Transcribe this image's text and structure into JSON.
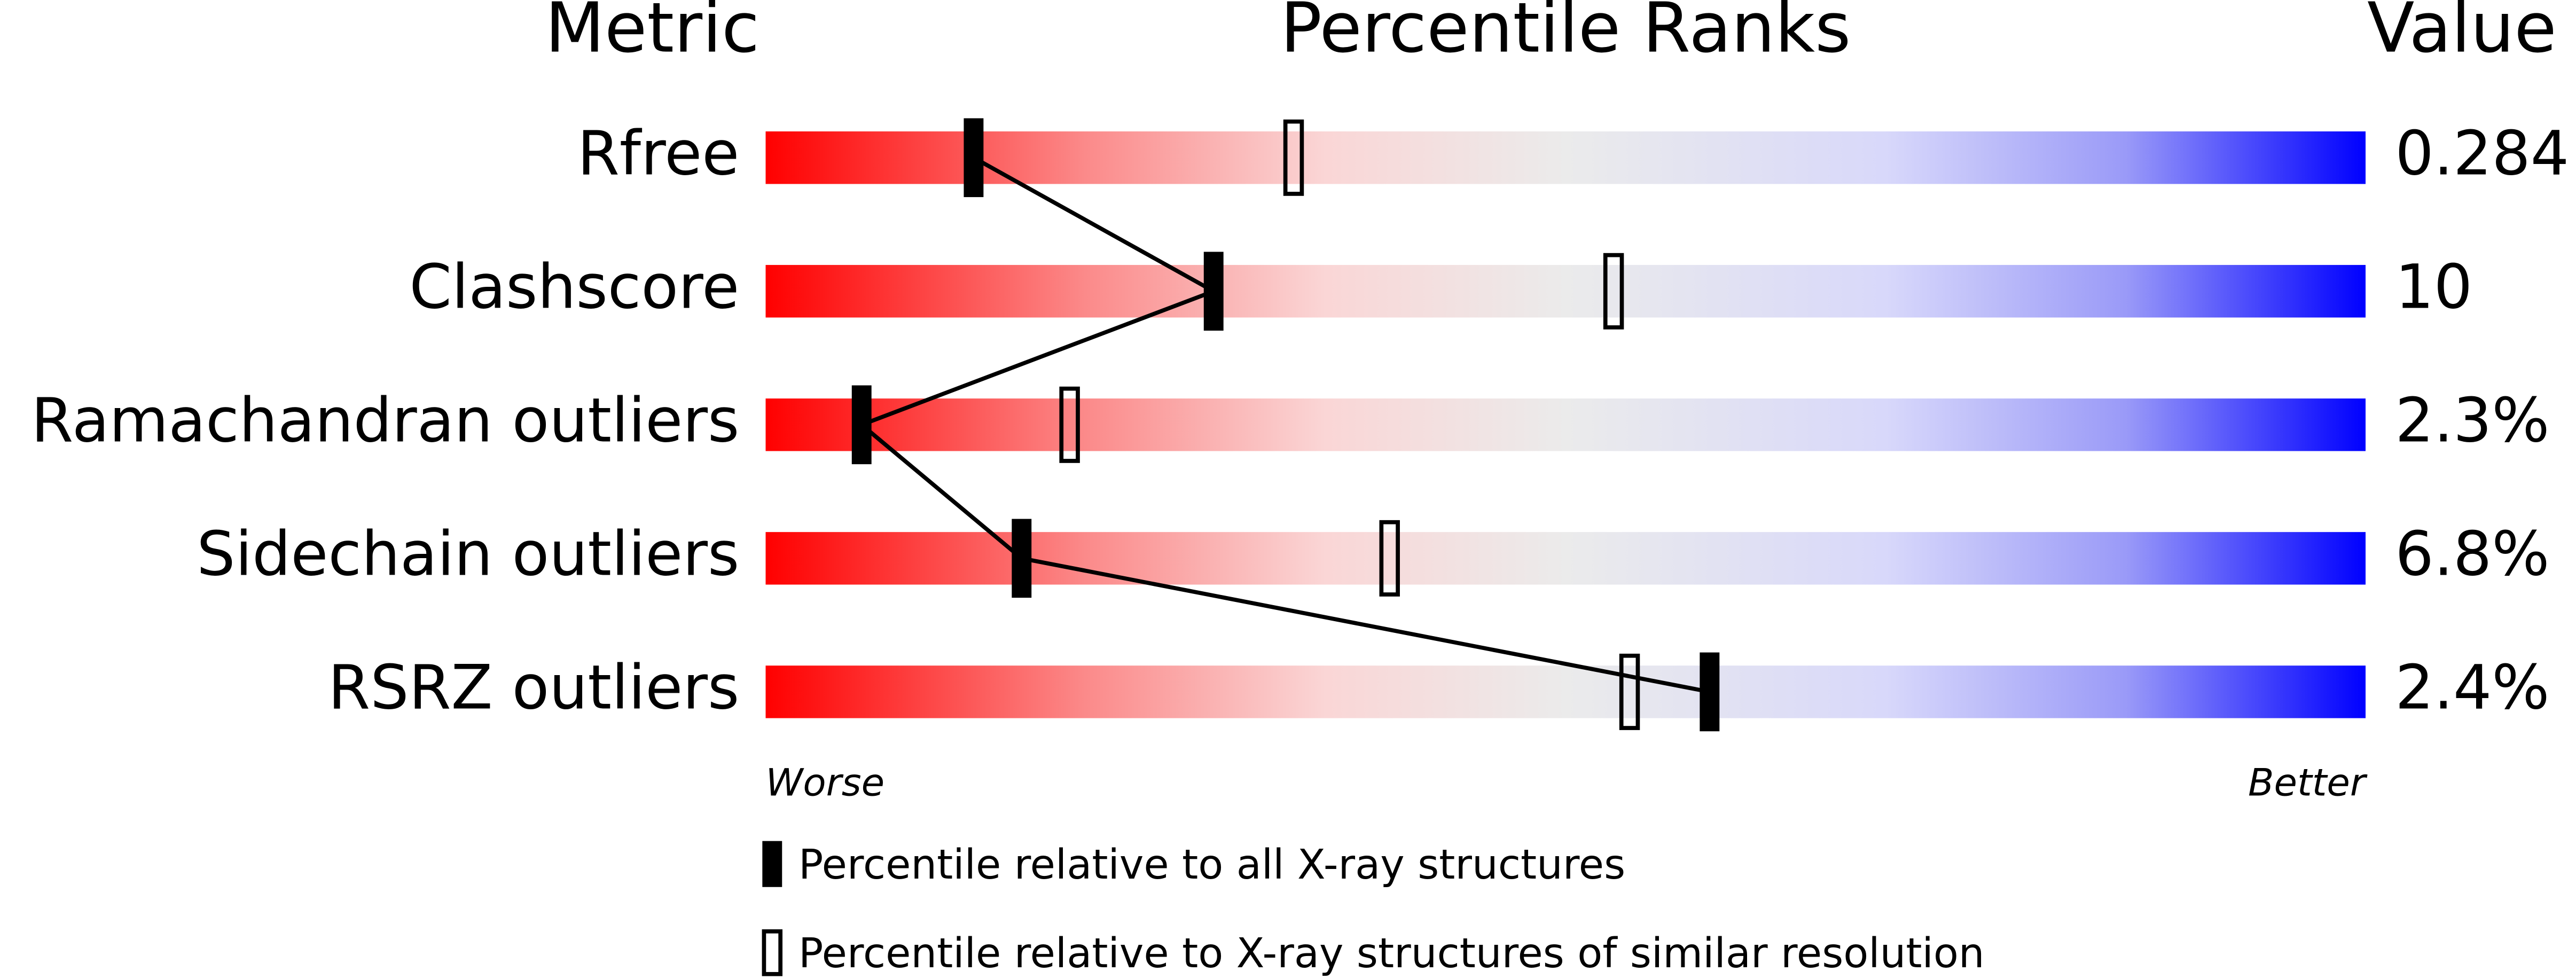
{
  "chart_data": {
    "type": "percentile",
    "headers": {
      "metric": "Metric",
      "ranks": "Percentile Ranks",
      "value": "Value"
    },
    "categories": [
      "Rfree",
      "Clashscore",
      "Ramachandran outliers",
      "Sidechain outliers",
      "RSRZ outliers"
    ],
    "metric_values": [
      "0.284",
      "10",
      "2.3%",
      "6.8%",
      "2.4%"
    ],
    "series": [
      {
        "name": "Percentile relative to all X-ray structures",
        "color": "#000000",
        "style": "filled",
        "values": [
          13,
          28,
          6,
          16,
          59
        ]
      },
      {
        "name": "Percentile relative to X-ray structures of similar resolution",
        "color": "#000000",
        "style": "open",
        "values": [
          33,
          53,
          19,
          39,
          54
        ]
      }
    ],
    "xlim": [
      0,
      100
    ],
    "axis_labels": {
      "low": "Worse",
      "high": "Better"
    }
  }
}
